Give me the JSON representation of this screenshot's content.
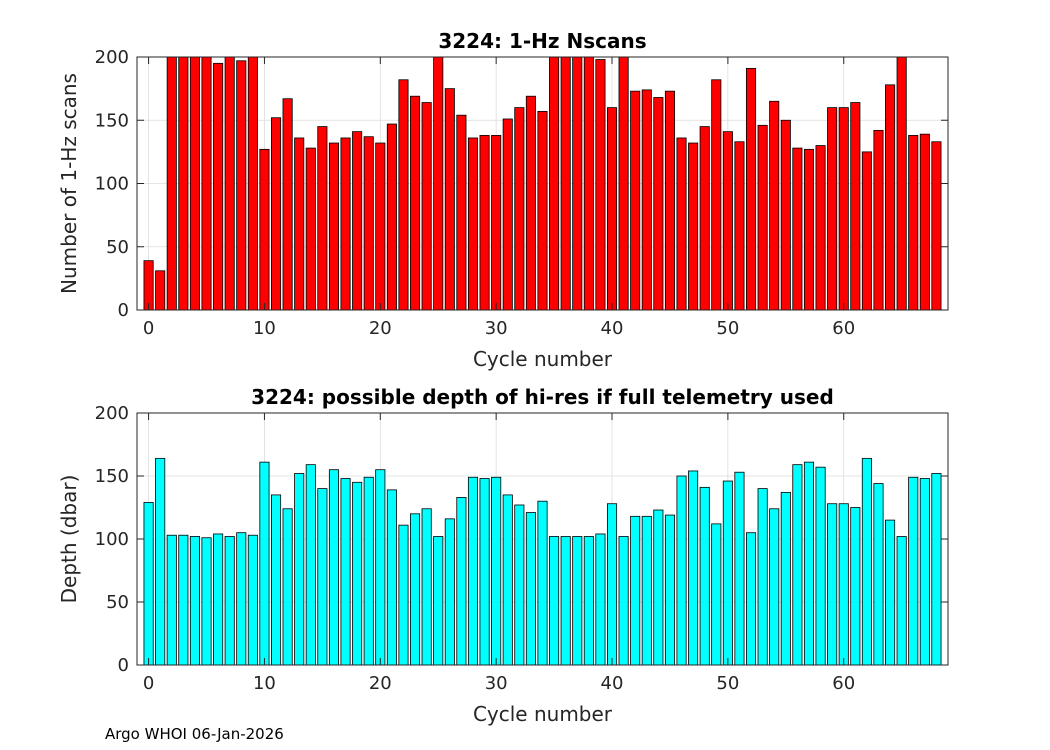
{
  "chart_data": [
    {
      "type": "bar",
      "title": "3224: 1-Hz Nscans",
      "xlabel": "Cycle number",
      "ylabel": "Number of 1-Hz scans",
      "xlim": [
        -1,
        69
      ],
      "ylim": [
        0,
        200
      ],
      "xticks": [
        0,
        10,
        20,
        30,
        40,
        50,
        60
      ],
      "yticks": [
        0,
        50,
        100,
        150,
        200
      ],
      "grid": true,
      "bar_color": "#ff0000",
      "x": [
        0,
        1,
        2,
        3,
        4,
        5,
        6,
        7,
        8,
        9,
        10,
        11,
        12,
        13,
        14,
        15,
        16,
        17,
        18,
        19,
        20,
        21,
        22,
        23,
        24,
        25,
        26,
        27,
        28,
        29,
        30,
        31,
        32,
        33,
        34,
        35,
        36,
        37,
        38,
        39,
        40,
        41,
        42,
        43,
        44,
        45,
        46,
        47,
        48,
        49,
        50,
        51,
        52,
        53,
        54,
        55,
        56,
        57,
        58,
        59,
        60,
        61,
        62,
        63,
        64,
        65,
        66,
        67,
        68
      ],
      "values": [
        39,
        31,
        200,
        200,
        200,
        200,
        195,
        200,
        197,
        200,
        127,
        152,
        167,
        136,
        128,
        145,
        132,
        136,
        141,
        137,
        132,
        147,
        182,
        169,
        164,
        200,
        175,
        154,
        136,
        138,
        138,
        151,
        160,
        169,
        157,
        200,
        200,
        200,
        200,
        198,
        160,
        200,
        173,
        174,
        168,
        173,
        136,
        132,
        145,
        182,
        141,
        133,
        191,
        146,
        165,
        150,
        128,
        127,
        130,
        160,
        160,
        164,
        125,
        142,
        178,
        200,
        138,
        139,
        133
      ]
    },
    {
      "type": "bar",
      "title": "3224: possible depth of hi-res if full telemetry used",
      "xlabel": "Cycle number",
      "ylabel": "Depth (dbar)",
      "xlim": [
        -1,
        69
      ],
      "ylim": [
        0,
        200
      ],
      "xticks": [
        0,
        10,
        20,
        30,
        40,
        50,
        60
      ],
      "yticks": [
        0,
        50,
        100,
        150,
        200
      ],
      "grid": true,
      "bar_color": "#00ffff",
      "x": [
        0,
        1,
        2,
        3,
        4,
        5,
        6,
        7,
        8,
        9,
        10,
        11,
        12,
        13,
        14,
        15,
        16,
        17,
        18,
        19,
        20,
        21,
        22,
        23,
        24,
        25,
        26,
        27,
        28,
        29,
        30,
        31,
        32,
        33,
        34,
        35,
        36,
        37,
        38,
        39,
        40,
        41,
        42,
        43,
        44,
        45,
        46,
        47,
        48,
        49,
        50,
        51,
        52,
        53,
        54,
        55,
        56,
        57,
        58,
        59,
        60,
        61,
        62,
        63,
        64,
        65,
        66,
        67,
        68
      ],
      "values": [
        129,
        164,
        103,
        103,
        102,
        101,
        104,
        102,
        105,
        103,
        161,
        135,
        124,
        152,
        159,
        140,
        155,
        148,
        145,
        149,
        155,
        139,
        111,
        120,
        124,
        102,
        116,
        133,
        149,
        148,
        149,
        135,
        127,
        121,
        130,
        102,
        102,
        102,
        102,
        104,
        128,
        102,
        118,
        118,
        123,
        119,
        150,
        154,
        141,
        112,
        146,
        153,
        105,
        140,
        124,
        137,
        159,
        161,
        157,
        128,
        128,
        125,
        164,
        144,
        115,
        102,
        149,
        148,
        152
      ]
    }
  ],
  "footer": "Argo WHOI 06-Jan-2026"
}
